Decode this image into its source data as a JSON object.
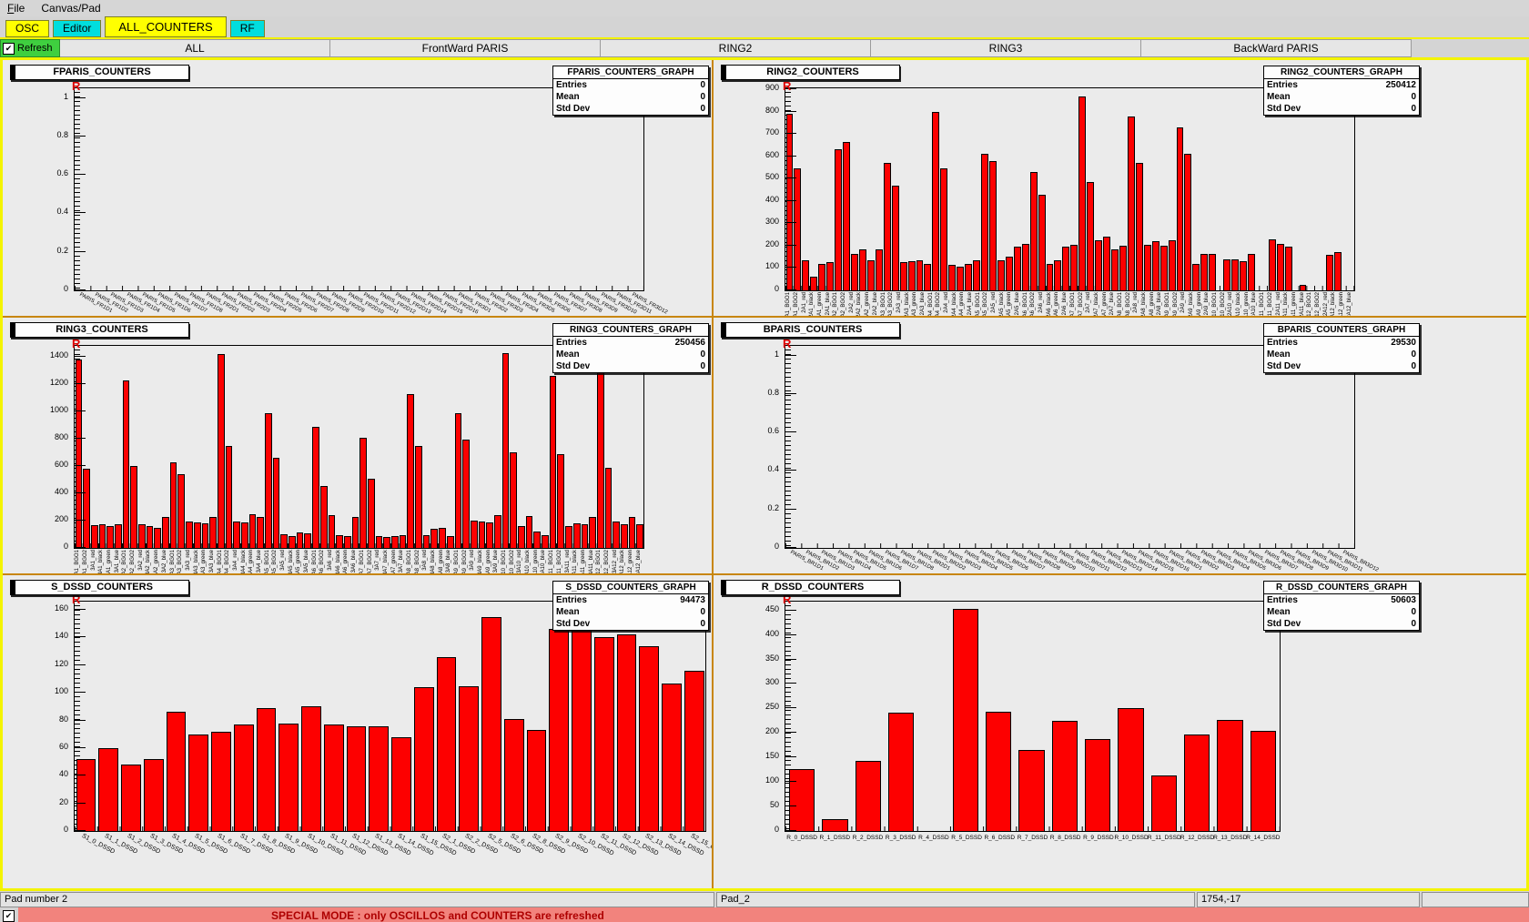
{
  "menu": {
    "items": [
      {
        "label": "File",
        "underline_first": true
      },
      {
        "label": "Canvas/Pad",
        "underline_first": false
      }
    ]
  },
  "tabs": [
    {
      "label": "OSC",
      "color": "#ffff00",
      "active": false
    },
    {
      "label": "Editor",
      "color": "#00dede",
      "active": false
    },
    {
      "label": "ALL_COUNTERS",
      "color": "#ffff00",
      "active": true
    },
    {
      "label": "RF",
      "color": "#00dede",
      "active": false
    }
  ],
  "toolbar": {
    "refresh_label": "Refresh",
    "refresh_color": "#3fcf3f",
    "buttons": [
      "ALL",
      "FrontWard PARIS",
      "RING2",
      "RING3",
      "BackWard PARIS"
    ]
  },
  "statusbar": {
    "cells": [
      "Pad number 2",
      "Pad_2",
      "1754,-17",
      ""
    ]
  },
  "special": {
    "message": "SPECIAL MODE : only OSCILLOS and COUNTERS are refreshed",
    "checked": true,
    "bar_color": "#f2837d",
    "text_color": "#ae0000"
  },
  "icons": {
    "check": "✔"
  },
  "r_marker": "R",
  "stats_labels": [
    "Entries",
    "Mean",
    "Std Dev"
  ],
  "bar_color": "#fd0000",
  "chart_data": {
    "note": "see pads array"
  },
  "pads": [
    {
      "title": "FPARIS_COUNTERS",
      "stats_title": "FPARIS_COUNTERS_GRAPH",
      "entries": "0",
      "mean": "0",
      "std_dev": "0",
      "type": "bar",
      "y_max": 1.05,
      "y_ticks": [
        "1",
        "0.8",
        "0.6",
        "0.4",
        "0.2",
        "0"
      ],
      "x_label_style": "angle-small",
      "x_labels": [
        "PARIS_FR1D1",
        "PARIS_FR1D2",
        "PARIS_FR1D3",
        "PARIS_FR1D4",
        "PARIS_FR1D5",
        "PARIS_FR1D6",
        "PARIS_FR1D7",
        "PARIS_FR1D8",
        "PARIS_FR2D1",
        "PARIS_FR2D2",
        "PARIS_FR2D3",
        "PARIS_FR2D4",
        "PARIS_FR2D5",
        "PARIS_FR2D6",
        "PARIS_FR2D7",
        "PARIS_FR2D8",
        "PARIS_FR2D9",
        "PARIS_FR2D10",
        "PARIS_FR2D11",
        "PARIS_FR2D12",
        "PARIS_FR2D13",
        "PARIS_FR2D14",
        "PARIS_FR2D15",
        "PARIS_FR2D16",
        "PARIS_FR3D1",
        "PARIS_FR3D2",
        "PARIS_FR3D3",
        "PARIS_FR3D4",
        "PARIS_FR3D5",
        "PARIS_FR3D6",
        "PARIS_FR3D7",
        "PARIS_FR3D8",
        "PARIS_FR3D9",
        "PARIS_FR3D10",
        "PARIS_FR3D11",
        "PARIS_FR3D12"
      ],
      "values": []
    },
    {
      "title": "RING2_COUNTERS",
      "stats_title": "RING2_COUNTERS_GRAPH",
      "entries": "250412",
      "mean": "0",
      "std_dev": "0",
      "type": "bar",
      "y_max": 905,
      "y_ticks": [
        "900",
        "800",
        "700",
        "600",
        "500",
        "400",
        "300",
        "200",
        "100",
        "0"
      ],
      "x_label_style": "vertical",
      "x_labels": [
        "2A1_BGO1",
        "2A1_BGO2",
        "2A1_red",
        "2A1_black",
        "2A1_green",
        "2A1_blue",
        "2A2_BGO1",
        "2A2_BGO2",
        "2A2_red",
        "2A2_black",
        "2A2_green",
        "2A2_blue",
        "2A3_BGO1",
        "2A3_BGO2",
        "2A3_red",
        "2A3_black",
        "2A3_green",
        "2A3_blue",
        "2A4_BGO1",
        "2A4_BGO2",
        "2A4_red",
        "2A4_black",
        "2A4_green",
        "2A4_blue",
        "2A5_BGO1",
        "2A5_BGO2",
        "2A5_red",
        "2A5_black",
        "2A5_green",
        "2A5_blue",
        "2A6_BGO1",
        "2A6_BGO2",
        "2A6_red",
        "2A6_black",
        "2A6_green",
        "2A6_blue",
        "2A7_BGO1",
        "2A7_BGO2",
        "2A7_red",
        "2A7_black",
        "2A7_green",
        "2A7_blue",
        "2A8_BGO1",
        "2A8_BGO2",
        "2A8_red",
        "2A8_black",
        "2A8_green",
        "2A8_blue",
        "2A9_BGO1",
        "2A9_BGO2",
        "2A9_red",
        "2A9_black",
        "2A9_green",
        "2A9_blue",
        "2A10_BGO1",
        "2A10_BGO2",
        "2A10_red",
        "2A10_black",
        "2A10_green",
        "2A10_blue",
        "2A11_BGO1",
        "2A11_BGO2",
        "2A11_red",
        "2A11_black",
        "2A11_green",
        "2A11_blue",
        "2A12_BGO1",
        "2A12_BGO2",
        "2A12_red",
        "2A12_black",
        "2A12_green",
        "2A12_blue"
      ],
      "values": [
        790,
        545,
        135,
        60,
        120,
        125,
        630,
        665,
        165,
        185,
        135,
        185,
        570,
        470,
        125,
        130,
        135,
        120,
        800,
        545,
        115,
        105,
        120,
        135,
        610,
        580,
        135,
        150,
        195,
        210,
        530,
        430,
        120,
        135,
        195,
        205,
        870,
        485,
        225,
        240,
        185,
        200,
        780,
        570,
        205,
        220,
        200,
        225,
        730,
        610,
        120,
        165,
        165,
        0,
        140,
        140,
        130,
        165,
        0,
        0,
        230,
        210,
        195,
        0,
        25,
        0,
        0,
        0,
        160,
        170,
        0,
        0
      ]
    },
    {
      "title": "RING3_COUNTERS",
      "stats_title": "RING3_COUNTERS_GRAPH",
      "entries": "250456",
      "mean": "0",
      "std_dev": "0",
      "type": "bar",
      "y_max": 1480,
      "y_ticks": [
        "1400",
        "1200",
        "1000",
        "800",
        "600",
        "400",
        "200",
        "0"
      ],
      "x_label_style": "vertical",
      "x_labels": [
        "3A1_BGO1",
        "3A1_BGO2",
        "3A1_red",
        "3A1_black",
        "3A1_green",
        "3A1_blue",
        "3A2_BGO1",
        "3A2_BGO2",
        "3A2_red",
        "3A2_black",
        "3A2_green",
        "3A2_blue",
        "3A3_BGO1",
        "3A3_BGO2",
        "3A3_red",
        "3A3_black",
        "3A3_green",
        "3A3_blue",
        "3A4_BGO1",
        "3A4_BGO2",
        "3A4_red",
        "3A4_black",
        "3A4_green",
        "3A4_blue",
        "3A5_BGO1",
        "3A5_BGO2",
        "3A5_red",
        "3A5_black",
        "3A5_green",
        "3A5_blue",
        "3A6_BGO1",
        "3A6_BGO2",
        "3A6_red",
        "3A6_black",
        "3A6_green",
        "3A6_blue",
        "3A7_BGO1",
        "3A7_BGO2",
        "3A7_red",
        "3A7_black",
        "3A7_green",
        "3A7_blue",
        "3A8_BGO1",
        "3A8_BGO2",
        "3A8_red",
        "3A8_black",
        "3A8_green",
        "3A8_blue",
        "3A9_BGO1",
        "3A9_BGO2",
        "3A9_red",
        "3A9_black",
        "3A9_green",
        "3A9_blue",
        "3A10_BGO1",
        "3A10_BGO2",
        "3A10_red",
        "3A10_black",
        "3A10_green",
        "3A10_blue",
        "3A11_BGO1",
        "3A11_BGO2",
        "3A11_red",
        "3A11_black",
        "3A11_green",
        "3A11_blue",
        "3A12_BGO1",
        "3A12_BGO2",
        "3A12_red",
        "3A12_black",
        "3A12_green",
        "3A12_blue"
      ],
      "values": [
        1380,
        580,
        170,
        175,
        160,
        175,
        1230,
        600,
        175,
        160,
        150,
        230,
        630,
        540,
        195,
        190,
        180,
        230,
        1420,
        750,
        195,
        185,
        245,
        230,
        990,
        660,
        100,
        90,
        115,
        105,
        890,
        455,
        240,
        95,
        85,
        225,
        810,
        505,
        90,
        80,
        85,
        95,
        1130,
        745,
        95,
        140,
        150,
        90,
        985,
        795,
        200,
        195,
        185,
        240,
        1430,
        700,
        160,
        235,
        120,
        95,
        1260,
        690,
        160,
        180,
        175,
        230,
        1330,
        590,
        195,
        175,
        230,
        175
      ]
    },
    {
      "title": "BPARIS_COUNTERS",
      "stats_title": "BPARIS_COUNTERS_GRAPH",
      "entries": "29530",
      "mean": "0",
      "std_dev": "0",
      "type": "bar",
      "y_max": 1.05,
      "y_ticks": [
        "1",
        "0.8",
        "0.6",
        "0.4",
        "0.2",
        "0"
      ],
      "x_label_style": "angle-small",
      "x_labels": [
        "PARIS_BR1D1",
        "PARIS_BR1D2",
        "PARIS_BR1D3",
        "PARIS_BR1D4",
        "PARIS_BR1D5",
        "PARIS_BR1D6",
        "PARIS_BR1D7",
        "PARIS_BR1D8",
        "PARIS_BR2D1",
        "PARIS_BR2D2",
        "PARIS_BR2D3",
        "PARIS_BR2D4",
        "PARIS_BR2D5",
        "PARIS_BR2D6",
        "PARIS_BR2D7",
        "PARIS_BR2D8",
        "PARIS_BR2D9",
        "PARIS_BR2D10",
        "PARIS_BR2D11",
        "PARIS_BR2D12",
        "PARIS_BR2D13",
        "PARIS_BR2D14",
        "PARIS_BR2D15",
        "PARIS_BR2D16",
        "PARIS_BR3D1",
        "PARIS_BR3D2",
        "PARIS_BR3D3",
        "PARIS_BR3D4",
        "PARIS_BR3D5",
        "PARIS_BR3D6",
        "PARIS_BR3D7",
        "PARIS_BR3D8",
        "PARIS_BR3D9",
        "PARIS_BR3D10",
        "PARIS_BR3D11",
        "PARIS_BR3D12"
      ],
      "values": []
    },
    {
      "title": "S_DSSD_COUNTERS",
      "stats_title": "S_DSSD_COUNTERS_GRAPH",
      "entries": "94473",
      "mean": "0",
      "std_dev": "0",
      "type": "bar",
      "y_max": 166,
      "y_ticks": [
        "160",
        "140",
        "120",
        "100",
        "80",
        "60",
        "40",
        "20",
        "0"
      ],
      "x_label_style": "angle",
      "x_labels": [
        "S1_0_DSSD",
        "S1_1_DSSD",
        "S1_2_DSSD",
        "S1_3_DSSD",
        "S1_4_DSSD",
        "S1_5_DSSD",
        "S1_6_DSSD",
        "S1_7_DSSD",
        "S1_8_DSSD",
        "S1_9_DSSD",
        "S1_10_DSSD",
        "S1_11_DSSD",
        "S1_12_DSSD",
        "S1_13_DSSD",
        "S1_14_DSSD",
        "S1_15_DSSD",
        "S2_1_DSSD",
        "S2_2_DSSD",
        "S2_5_DSSD",
        "S2_6_DSSD",
        "S2_8_DSSD",
        "S2_9_DSSD",
        "S2_10_DSSD",
        "S2_11_DSSD",
        "S2_12_DSSD",
        "S2_13_DSSD",
        "S2_14_DSSD",
        "S2_15_DSSD"
      ],
      "values": [
        52,
        60,
        48,
        52,
        86,
        70,
        72,
        77,
        89,
        78,
        90,
        77,
        76,
        76,
        68,
        104,
        126,
        105,
        155,
        81,
        73,
        146,
        152,
        140,
        142,
        134,
        107,
        116
      ]
    },
    {
      "title": "R_DSSD_COUNTERS",
      "stats_title": "R_DSSD_COUNTERS_GRAPH",
      "entries": "50603",
      "mean": "0",
      "std_dev": "0",
      "type": "bar",
      "y_max": 468,
      "y_ticks": [
        "450",
        "400",
        "350",
        "300",
        "250",
        "200",
        "150",
        "100",
        "50",
        "0"
      ],
      "x_label_style": "horizontal",
      "x_labels": [
        "R_0_DSSD",
        "R_1_DSSD",
        "R_2_DSSD",
        "R_3_DSSD",
        "R_4_DSSD",
        "R_5_DSSD",
        "R_6_DSSD",
        "R_7_DSSD",
        "R_8_DSSD",
        "R_9_DSSD",
        "R_10_DSSD",
        "R_11_DSSD",
        "R_12_DSSD",
        "R_13_DSSD",
        "R_14_DSSD"
      ],
      "values": [
        127,
        25,
        143,
        241,
        0,
        453,
        243,
        165,
        225,
        188,
        251,
        113,
        196,
        227,
        204
      ]
    }
  ]
}
